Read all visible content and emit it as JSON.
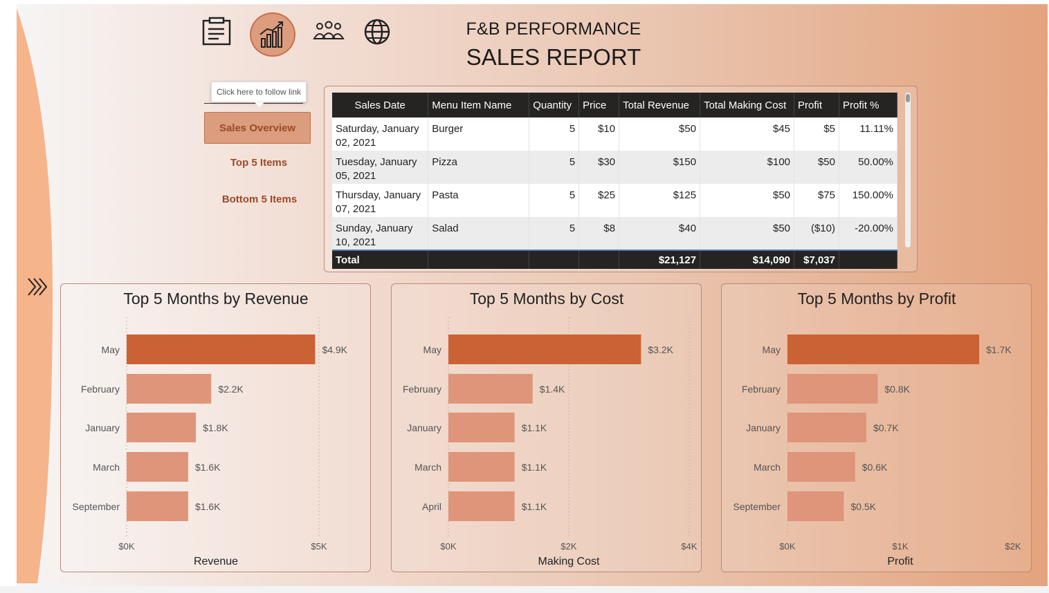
{
  "header": {
    "line1": "F&B PERFORMANCE",
    "line2": "SALES REPORT"
  },
  "nav_icons": [
    "report-icon",
    "chart-icon",
    "people-icon",
    "globe-icon"
  ],
  "tooltip": "Click here to follow link",
  "buttons": {
    "overview": "Sales Overview",
    "top": "Top 5 Items",
    "bottom": "Bottom 5 Items"
  },
  "table": {
    "columns": [
      "Sales Date",
      "Menu Item Name",
      "Quantity",
      "Price",
      "Total Revenue",
      "Total Making Cost",
      "Profit",
      "Profit %"
    ],
    "rows": [
      [
        "Saturday, January 02, 2021",
        "Burger",
        "5",
        "$10",
        "$50",
        "$45",
        "$5",
        "11.11%"
      ],
      [
        "Tuesday, January 05, 2021",
        "Pizza",
        "5",
        "$30",
        "$150",
        "$100",
        "$50",
        "50.00%"
      ],
      [
        "Thursday, January 07, 2021",
        "Pasta",
        "5",
        "$25",
        "$125",
        "$50",
        "$75",
        "150.00%"
      ],
      [
        "Sunday, January 10, 2021",
        "Salad",
        "5",
        "$8",
        "$40",
        "$50",
        "($10)",
        "-20.00%"
      ]
    ],
    "total": [
      "Total",
      "",
      "",
      "",
      "$21,127",
      "$14,090",
      "$7,037",
      ""
    ]
  },
  "colors": {
    "top": "#cb6234",
    "other": "#de957a",
    "text": "#555555"
  },
  "chart_data": [
    {
      "type": "bar",
      "orientation": "horizontal",
      "title": "Top 5 Months by Revenue",
      "xlabel": "Revenue",
      "categories": [
        "May",
        "February",
        "January",
        "March",
        "September"
      ],
      "values": [
        4900,
        2200,
        1800,
        1600,
        1600
      ],
      "labels": [
        "$4.9K",
        "$2.2K",
        "$1.8K",
        "$1.6K",
        "$1.6K"
      ],
      "xlim": [
        0,
        5000
      ],
      "ticks": [
        0,
        5000
      ],
      "tick_labels": [
        "$0K",
        "$5K"
      ]
    },
    {
      "type": "bar",
      "orientation": "horizontal",
      "title": "Top 5 Months by Cost",
      "xlabel": "Making Cost",
      "categories": [
        "May",
        "February",
        "January",
        "March",
        "April"
      ],
      "values": [
        3200,
        1400,
        1100,
        1100,
        1100
      ],
      "labels": [
        "$3.2K",
        "$1.4K",
        "$1.1K",
        "$1.1K",
        "$1.1K"
      ],
      "xlim": [
        0,
        4000
      ],
      "ticks": [
        0,
        2000,
        4000
      ],
      "tick_labels": [
        "$0K",
        "$2K",
        "$4K"
      ]
    },
    {
      "type": "bar",
      "orientation": "horizontal",
      "title": "Top 5 Months by Profit",
      "xlabel": "Profit",
      "categories": [
        "May",
        "February",
        "January",
        "March",
        "September"
      ],
      "values": [
        1700,
        800,
        700,
        600,
        500
      ],
      "labels": [
        "$1.7K",
        "$0.8K",
        "$0.7K",
        "$0.6K",
        "$0.5K"
      ],
      "xlim": [
        0,
        2000
      ],
      "ticks": [
        0,
        1000,
        2000
      ],
      "tick_labels": [
        "$0K",
        "$1K",
        "$2K"
      ]
    }
  ]
}
